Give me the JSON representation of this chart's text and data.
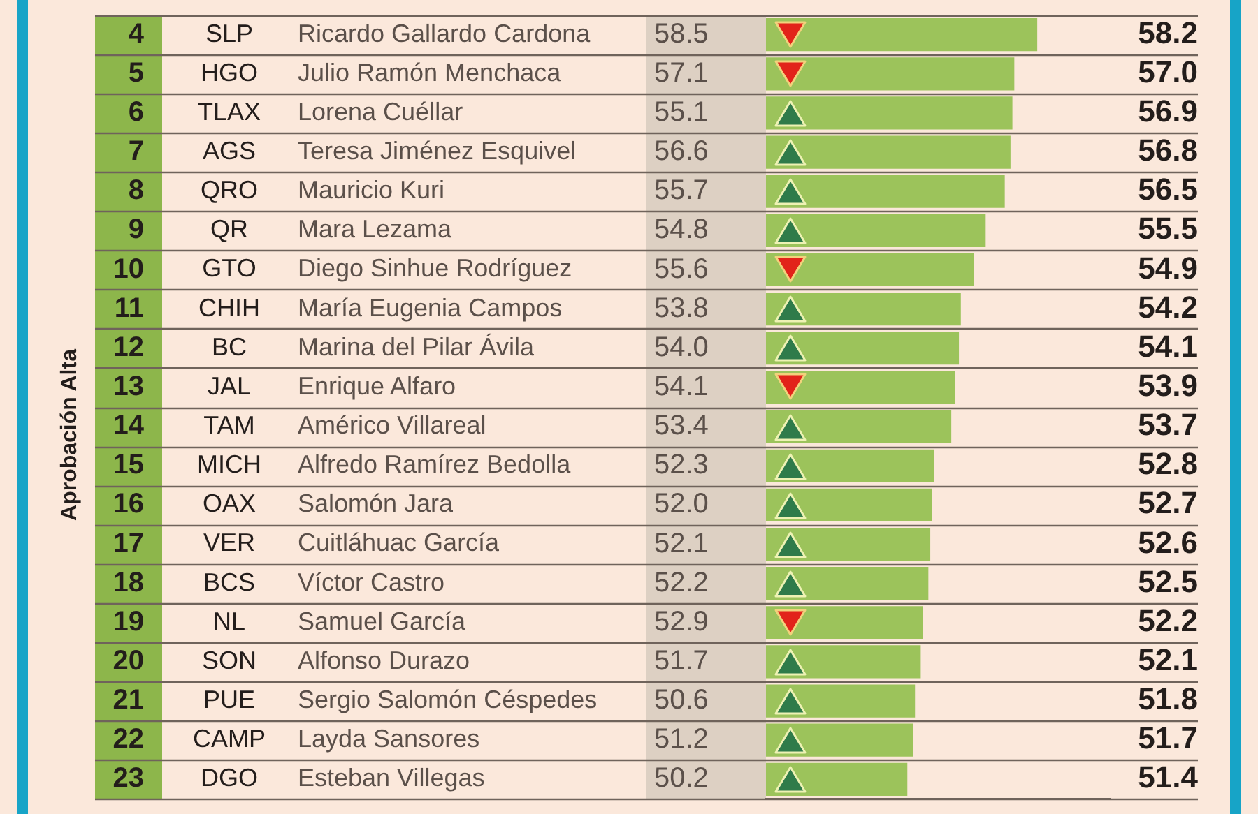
{
  "chart_data": {
    "type": "bar",
    "orientation": "horizontal",
    "categories": [
      "Ricardo Gallardo Cardona",
      "Julio Ramón Menchaca",
      "Lorena Cuéllar",
      "Teresa Jiménez Esquivel",
      "Mauricio Kuri",
      "Mara Lezama",
      "Diego Sinhue Rodríguez",
      "María Eugenia Campos",
      "Marina del Pilar Ávila",
      "Enrique Alfaro",
      "Américo Villareal",
      "Alfredo Ramírez Bedolla",
      "Salomón Jara",
      "Cuitláhuac García",
      "Víctor Castro",
      "Samuel García",
      "Alfonso Durazo",
      "Sergio Salomón Céspedes",
      "Layda Sansores",
      "Esteban Villegas"
    ],
    "series": [
      {
        "color": "#9cc35b",
        "values": [
          58.2,
          57.0,
          56.9,
          56.8,
          56.5,
          55.5,
          54.9,
          54.2,
          54.1,
          53.9,
          53.7,
          52.8,
          52.7,
          52.6,
          52.5,
          52.2,
          52.1,
          51.8,
          51.7,
          51.4
        ],
        "value_labels": [
          "58.2",
          "57.0",
          "56.9",
          "56.8",
          "56.5",
          "55.5",
          "54.9",
          "54.2",
          "54.1",
          "53.9",
          "53.7",
          "52.8",
          "52.7",
          "52.6",
          "52.5",
          "52.2",
          "52.1",
          "51.8",
          "51.7",
          "51.4"
        ]
      }
    ],
    "xlim": [
      44,
      62
    ],
    "tick_labels": "y",
    "grid": "y",
    "annotations": [
      "Aprobación Alta",
      {
        "text": "4",
        "y": "Ricardo Gallardo Cardona"
      },
      {
        "text": "SLP",
        "y": "Ricardo Gallardo Cardona"
      },
      {
        "text": "58.5",
        "y": "Ricardo Gallardo Cardona"
      },
      {
        "text": "5",
        "y": "Julio Ramón Menchaca"
      },
      {
        "text": "HGO",
        "y": "Julio Ramón Menchaca"
      },
      {
        "text": "57.1",
        "y": "Julio Ramón Menchaca"
      },
      {
        "text": "6",
        "y": "Lorena Cuéllar"
      },
      {
        "text": "TLAX",
        "y": "Lorena Cuéllar"
      },
      {
        "text": "55.1",
        "y": "Lorena Cuéllar"
      },
      {
        "text": "7",
        "y": "Teresa Jiménez Esquivel"
      },
      {
        "text": "AGS",
        "y": "Teresa Jiménez Esquivel"
      },
      {
        "text": "56.6",
        "y": "Teresa Jiménez Esquivel"
      },
      {
        "text": "8",
        "y": "Mauricio Kuri"
      },
      {
        "text": "QRO",
        "y": "Mauricio Kuri"
      },
      {
        "text": "55.7",
        "y": "Mauricio Kuri"
      },
      {
        "text": "9",
        "y": "Mara Lezama"
      },
      {
        "text": "QR",
        "y": "Mara Lezama"
      },
      {
        "text": "54.8",
        "y": "Mara Lezama"
      },
      {
        "text": "10",
        "y": "Diego Sinhue Rodríguez"
      },
      {
        "text": "GTO",
        "y": "Diego Sinhue Rodríguez"
      },
      {
        "text": "55.6",
        "y": "Diego Sinhue Rodríguez"
      },
      {
        "text": "11",
        "y": "María Eugenia Campos"
      },
      {
        "text": "CHIH",
        "y": "María Eugenia Campos"
      },
      {
        "text": "53.8",
        "y": "María Eugenia Campos"
      },
      {
        "text": "12",
        "y": "Marina del Pilar Ávila"
      },
      {
        "text": "BC",
        "y": "Marina del Pilar Ávila"
      },
      {
        "text": "54.0",
        "y": "Marina del Pilar Ávila"
      },
      {
        "text": "13",
        "y": "Enrique Alfaro"
      },
      {
        "text": "JAL",
        "y": "Enrique Alfaro"
      },
      {
        "text": "54.1",
        "y": "Enrique Alfaro"
      },
      {
        "text": "14",
        "y": "Américo Villareal"
      },
      {
        "text": "TAM",
        "y": "Américo Villareal"
      },
      {
        "text": "53.4",
        "y": "Américo Villareal"
      },
      {
        "text": "15",
        "y": "Alfredo Ramírez Bedolla"
      },
      {
        "text": "MICH",
        "y": "Alfredo Ramírez Bedolla"
      },
      {
        "text": "52.3",
        "y": "Alfredo Ramírez Bedolla"
      },
      {
        "text": "16",
        "y": "Salomón Jara"
      },
      {
        "text": "OAX",
        "y": "Salomón Jara"
      },
      {
        "text": "52.0",
        "y": "Salomón Jara"
      },
      {
        "text": "17",
        "y": "Cuitláhuac García"
      },
      {
        "text": "VER",
        "y": "Cuitláhuac García"
      },
      {
        "text": "52.1",
        "y": "Cuitláhuac García"
      },
      {
        "text": "18",
        "y": "Víctor Castro"
      },
      {
        "text": "BCS",
        "y": "Víctor Castro"
      },
      {
        "text": "52.2",
        "y": "Víctor Castro"
      },
      {
        "text": "19",
        "y": "Samuel García"
      },
      {
        "text": "NL",
        "y": "Samuel García"
      },
      {
        "text": "52.9",
        "y": "Samuel García"
      },
      {
        "text": "20",
        "y": "Alfonso Durazo"
      },
      {
        "text": "SON",
        "y": "Alfonso Durazo"
      },
      {
        "text": "51.7",
        "y": "Alfonso Durazo"
      },
      {
        "text": "21",
        "y": "Sergio Salomón Céspedes"
      },
      {
        "text": "PUE",
        "y": "Sergio Salomón Céspedes"
      },
      {
        "text": "50.6",
        "y": "Sergio Salomón Céspedes"
      },
      {
        "text": "22",
        "y": "Layda Sansores"
      },
      {
        "text": "CAMP",
        "y": "Layda Sansores"
      },
      {
        "text": "51.2",
        "y": "Layda Sansores"
      },
      {
        "text": "23",
        "y": "Esteban Villegas"
      },
      {
        "text": "DGO",
        "y": "Esteban Villegas"
      },
      {
        "text": "50.2",
        "y": "Esteban Villegas"
      }
    ]
  }
}
